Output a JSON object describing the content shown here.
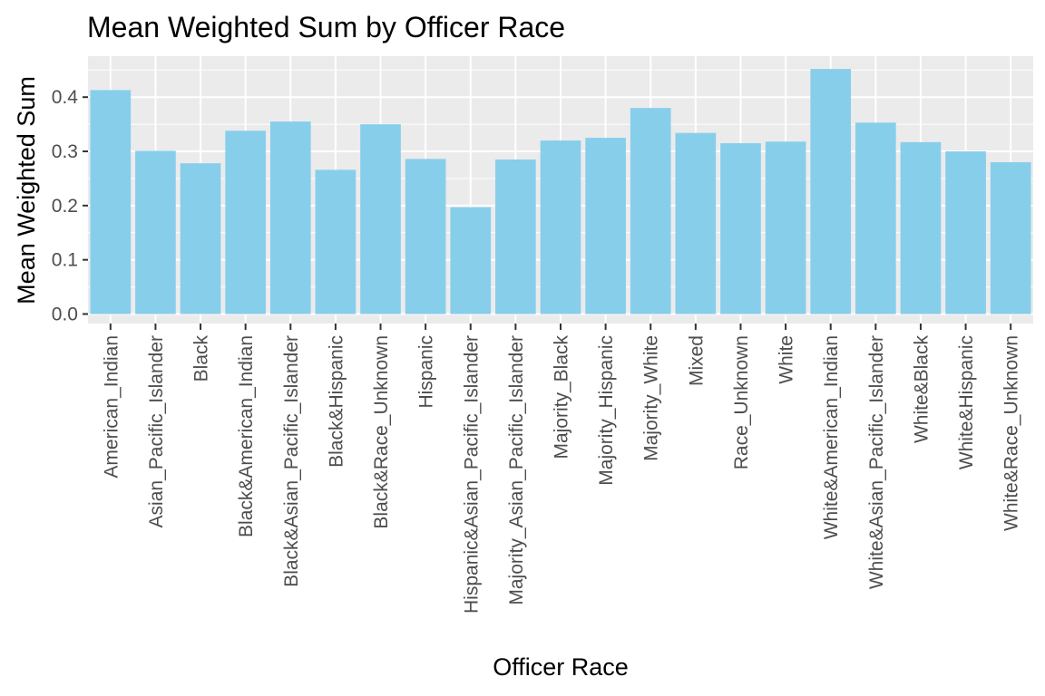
{
  "chart_data": {
    "type": "bar",
    "title": "Mean Weighted Sum by Officer Race",
    "xlabel": "Officer Race",
    "ylabel": "Mean Weighted Sum",
    "ylim": [
      0,
      0.46
    ],
    "yticks": [
      "0.0",
      "0.1",
      "0.2",
      "0.3",
      "0.4"
    ],
    "grid": true,
    "legend": "none",
    "colors": {
      "bar": "#87CEEB",
      "panel": "#EBEBEB",
      "grid": "#FFFFFF",
      "tick_text": "#4D4D4D"
    },
    "categories": [
      "American_Indian",
      "Asian_Pacific_Islander",
      "Black",
      "Black&American_Indian",
      "Black&Asian_Pacific_Islander",
      "Black&Hispanic",
      "Black&Race_Unknown",
      "Hispanic",
      "Hispanic&Asian_Pacific_Islander",
      "Majority_Asian_Pacific_Islander",
      "Majority_Black",
      "Majority_Hispanic",
      "Majority_White",
      "Mixed",
      "Race_Unknown",
      "White",
      "White&American_Indian",
      "White&Asian_Pacific_Islander",
      "White&Black",
      "White&Hispanic",
      "White&Race_Unknown"
    ],
    "values": [
      0.413,
      0.301,
      0.278,
      0.338,
      0.355,
      0.266,
      0.35,
      0.286,
      0.197,
      0.285,
      0.32,
      0.325,
      0.38,
      0.334,
      0.315,
      0.318,
      0.452,
      0.353,
      0.317,
      0.3,
      0.28
    ]
  }
}
